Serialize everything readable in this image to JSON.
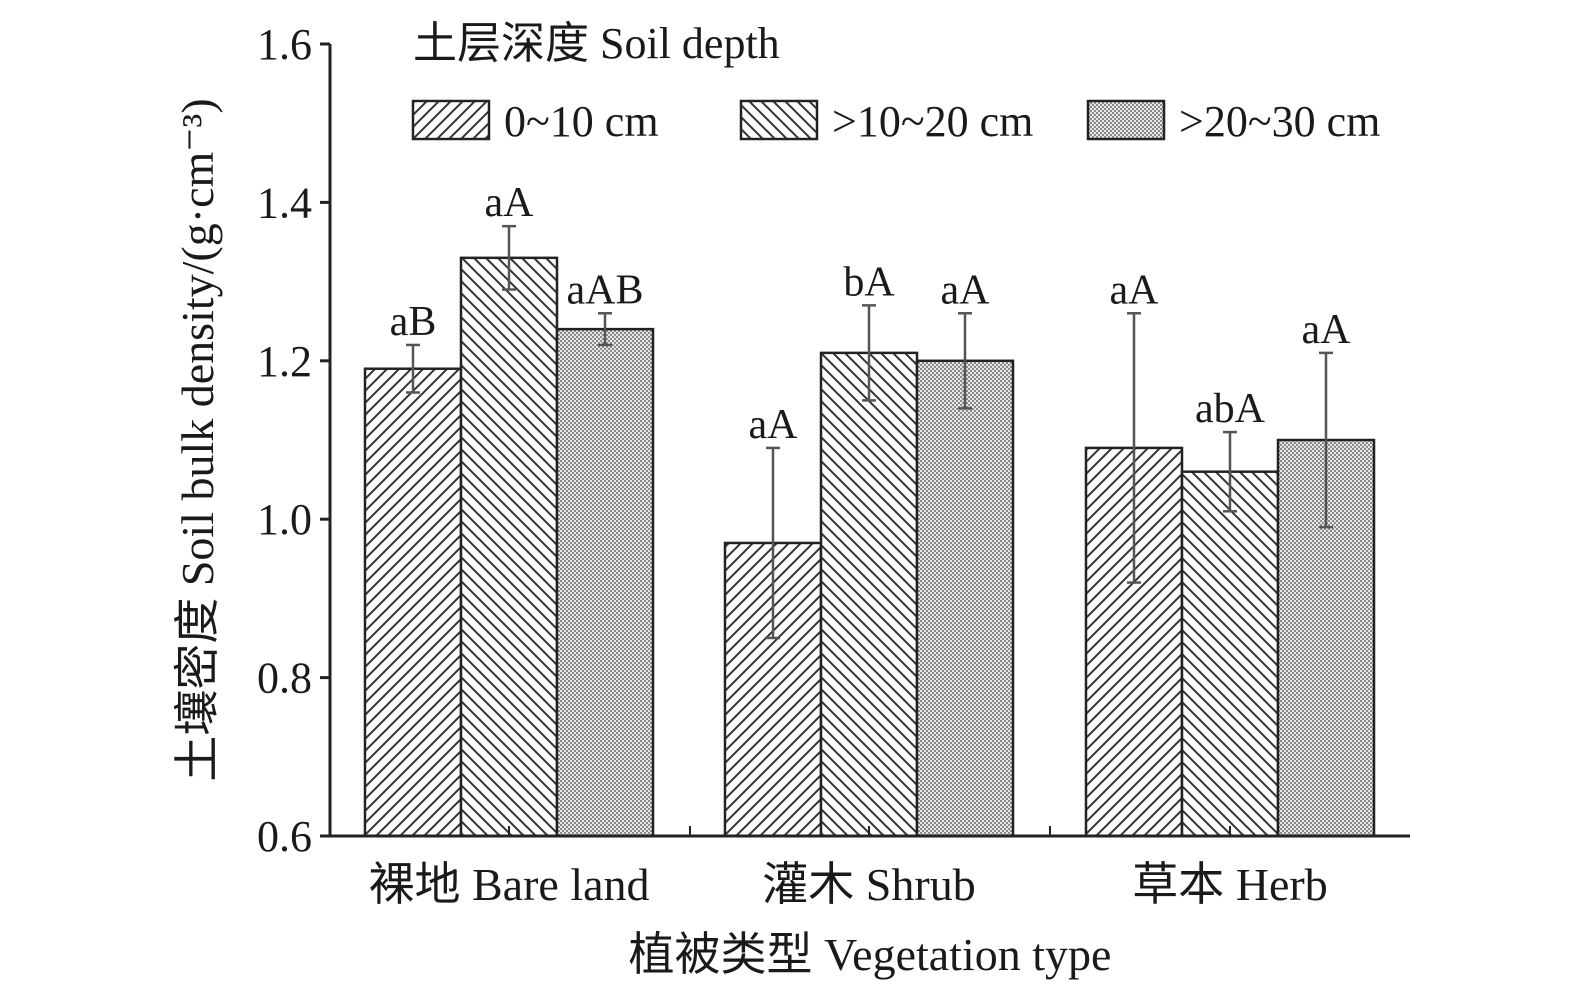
{
  "chart_data": {
    "type": "bar",
    "xlabel": "植被类型 Vegetation type",
    "ylabel": "土壤密度 Soil bulk density/(g·cm⁻³)",
    "ylim": [
      0.6,
      1.6
    ],
    "yticks": [
      "0.6",
      "0.8",
      "1.0",
      "1.2",
      "1.4",
      "1.6"
    ],
    "categories": [
      "裸地 Bare land",
      "灌木 Shrub",
      "草本 Herb"
    ],
    "legend_title": "土层深度 Soil depth",
    "legend_position": "top",
    "grid": false,
    "series": [
      {
        "name": "0~10 cm",
        "pattern": "hatch-forward",
        "values": [
          1.19,
          0.97,
          1.09
        ],
        "errors": [
          0.03,
          0.12,
          0.17
        ],
        "labels": [
          "aB",
          "aA",
          "aA"
        ]
      },
      {
        "name": ">10~20 cm",
        "pattern": "hatch-backward",
        "values": [
          1.33,
          1.21,
          1.06
        ],
        "errors": [
          0.04,
          0.06,
          0.05
        ],
        "labels": [
          "aA",
          "bA",
          "abA"
        ]
      },
      {
        "name": ">20~30 cm",
        "pattern": "fine-grid",
        "values": [
          1.24,
          1.2,
          1.1
        ],
        "errors": [
          0.02,
          0.06,
          0.11
        ],
        "labels": [
          "aAB",
          "aA",
          "aA"
        ]
      }
    ],
    "colors": {
      "stroke": "#222222",
      "hatch": "#333333",
      "grid_fill": "#8c8c8c"
    }
  }
}
